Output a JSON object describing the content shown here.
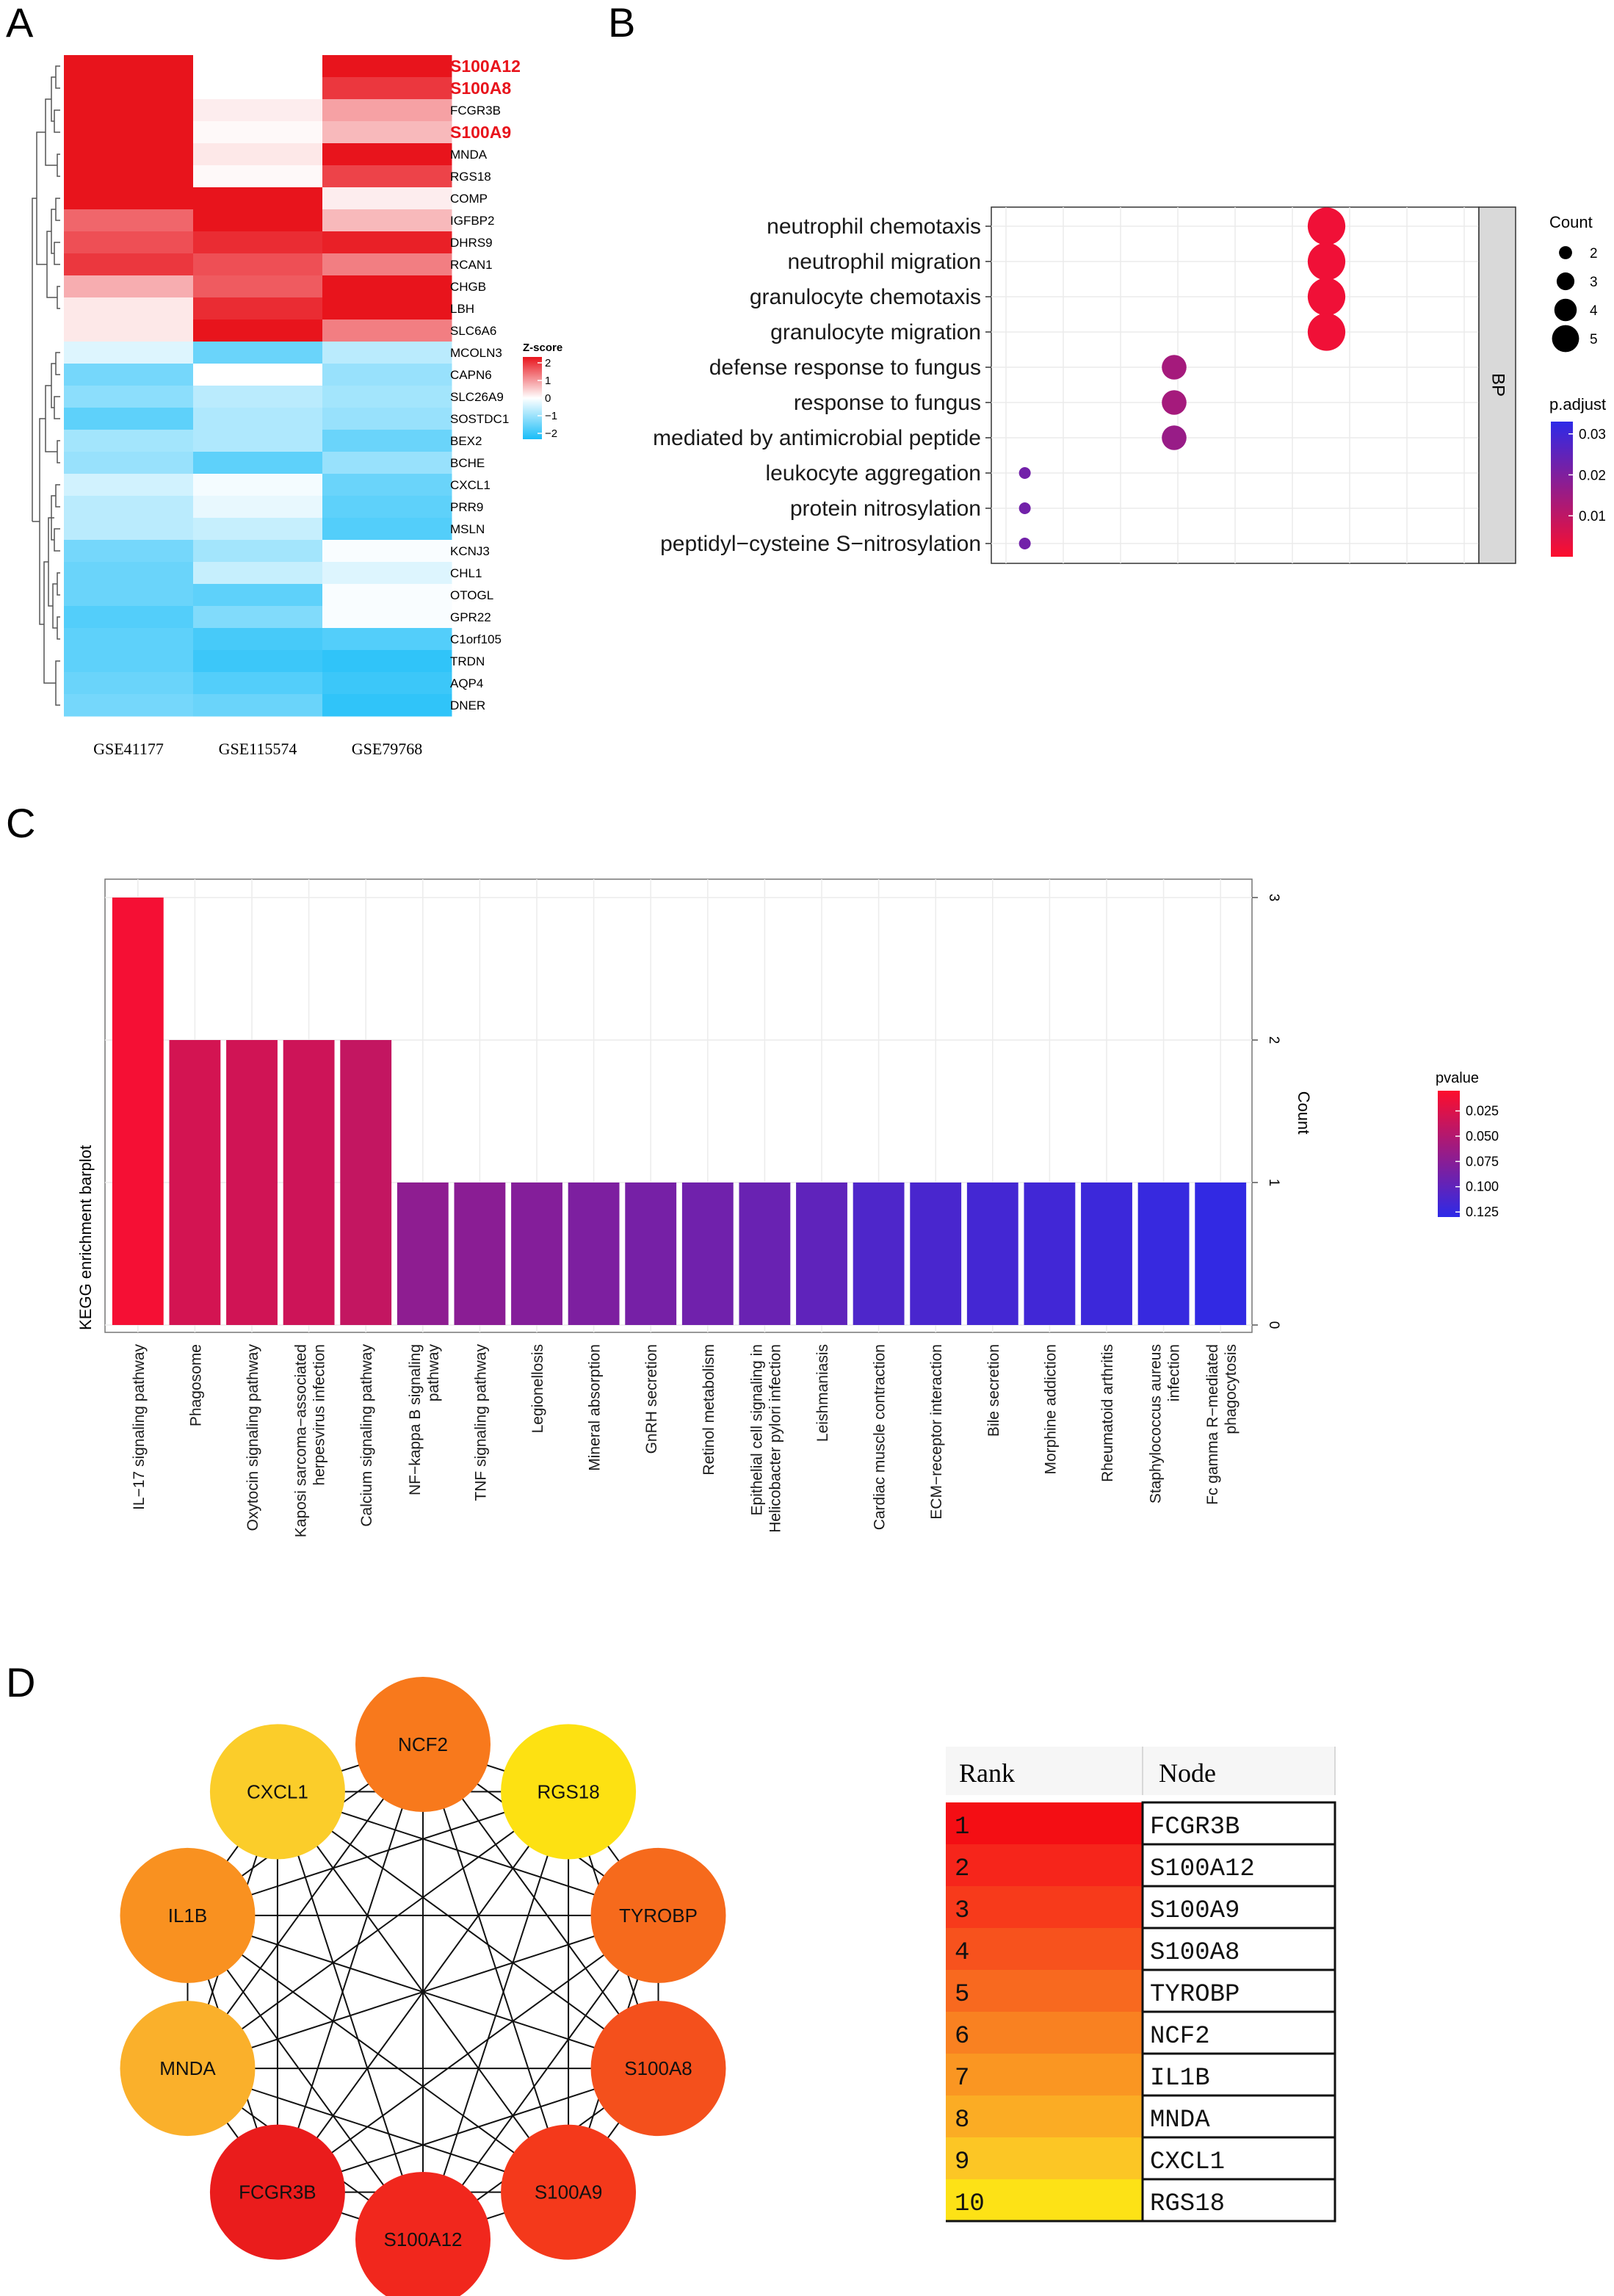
{
  "panels": [
    "A",
    "B",
    "C",
    "D"
  ],
  "chart_data": [
    {
      "panel": "A",
      "type": "heatmap",
      "columns": [
        "GSE41177",
        "GSE115574",
        "GSE79768"
      ],
      "genes": [
        "S100A12",
        "S100A8",
        "FCGR3B",
        "S100A9",
        "MNDA",
        "RGS18",
        "COMP",
        "IGFBP2",
        "DHRS9",
        "RCAN1",
        "CHGB",
        "LBH",
        "SLC6A6",
        "MCOLN3",
        "CAPN6",
        "SLC26A9",
        "SOSTDC1",
        "BEX2",
        "BCHE",
        "CXCL1",
        "PRR9",
        "MSLN",
        "KCNJ3",
        "CHL1",
        "OTOGL",
        "GPR22",
        "C1orf105",
        "TRDN",
        "AQP4",
        "DNER"
      ],
      "highlight_genes": [
        "S100A12",
        "S100A8",
        "S100A9"
      ],
      "values": [
        [
          2.0,
          0.0,
          2.0
        ],
        [
          2.0,
          0.0,
          1.7
        ],
        [
          2.0,
          0.15,
          0.8
        ],
        [
          2.0,
          0.05,
          0.6
        ],
        [
          2.0,
          0.2,
          2.0
        ],
        [
          2.0,
          0.05,
          1.6
        ],
        [
          2.0,
          2.0,
          0.15
        ],
        [
          1.3,
          2.0,
          0.6
        ],
        [
          1.5,
          1.8,
          1.9
        ],
        [
          1.7,
          1.5,
          1.1
        ],
        [
          0.7,
          1.4,
          2.0
        ],
        [
          0.2,
          1.8,
          2.0
        ],
        [
          0.2,
          2.0,
          1.1
        ],
        [
          -0.3,
          -1.3,
          -0.6
        ],
        [
          -1.2,
          0.0,
          -0.9
        ],
        [
          -1.0,
          -0.6,
          -0.8
        ],
        [
          -1.4,
          -0.7,
          -0.9
        ],
        [
          -0.8,
          -0.7,
          -1.3
        ],
        [
          -0.9,
          -1.4,
          -0.9
        ],
        [
          -0.4,
          -0.1,
          -1.3
        ],
        [
          -0.6,
          -0.2,
          -1.4
        ],
        [
          -0.6,
          -0.5,
          -1.5
        ],
        [
          -1.2,
          -0.8,
          -0.05
        ],
        [
          -1.3,
          -0.5,
          -0.3
        ],
        [
          -1.3,
          -1.4,
          -0.05
        ],
        [
          -1.5,
          -1.1,
          -0.05
        ],
        [
          -1.4,
          -1.6,
          -1.5
        ],
        [
          -1.4,
          -1.7,
          -1.8
        ],
        [
          -1.3,
          -1.5,
          -1.7
        ],
        [
          -1.2,
          -1.3,
          -1.8
        ]
      ],
      "legend_title": "Z-score",
      "legend_ticks": [
        "2",
        "1",
        "0",
        "−1",
        "−2"
      ]
    },
    {
      "panel": "B",
      "type": "scatter",
      "facet_label": "BP",
      "terms": [
        "neutrophil chemotaxis",
        "neutrophil migration",
        "granulocyte chemotaxis",
        "granulocyte migration",
        "defense response to fungus",
        "response to fungus",
        "mediated by antimicrobial peptide",
        "leukocyte aggregation",
        "protein nitrosylation",
        "peptidyl−cysteine S−nitrosylation"
      ],
      "gene_ratio": [
        0.55,
        0.55,
        0.55,
        0.55,
        0.3,
        0.3,
        0.3,
        0.055,
        0.055,
        0.055
      ],
      "count": [
        5,
        5,
        5,
        5,
        3,
        3,
        3,
        1,
        1,
        1
      ],
      "p_adjust": [
        0.002,
        0.002,
        0.002,
        0.002,
        0.014,
        0.014,
        0.016,
        0.022,
        0.022,
        0.022
      ],
      "xlim": [
        0.0,
        0.8
      ],
      "size_legend_title": "Count",
      "size_legend_values": [
        "2",
        "3",
        "4",
        "5"
      ],
      "color_legend_title": "p.adjust",
      "color_legend_ticks": [
        "0.03",
        "0.02",
        "0.01"
      ],
      "color_scale": [
        "#fd0e2c",
        "#2d2ae8"
      ]
    },
    {
      "panel": "C",
      "type": "bar",
      "ylabel_left": "KEGG enrichment barplot",
      "ylabel_right": "Count",
      "ylim": [
        0,
        3
      ],
      "yticks": [
        "0",
        "1",
        "2",
        "3"
      ],
      "categories": [
        "IL−17 signaling pathway",
        "Phagosome",
        "Oxytocin signaling pathway",
        "Kaposi sarcoma−associated\nherpesvirus infection",
        "Calcium signaling pathway",
        "NF−kappa B signaling\npathway",
        "TNF signaling pathway",
        "Legionellosis",
        "Mineral absorption",
        "GnRH secretion",
        "Retinol metabolism",
        "Epithelial cell signaling in\nHelicobacter pylori infection",
        "Leishmaniasis",
        "Cardiac muscle contraction",
        "ECM−receptor interaction",
        "Bile secretion",
        "Morphine addiction",
        "Rheumatoid arthritis",
        "Staphylococcus aureus\ninfection",
        "Fc gamma R−mediated\nphagocytosis"
      ],
      "values": [
        3,
        2,
        2,
        2,
        2,
        1,
        1,
        1,
        1,
        1,
        1,
        1,
        1,
        1,
        1,
        1,
        1,
        1,
        1,
        1
      ],
      "pvalue": [
        0.01,
        0.03,
        0.032,
        0.034,
        0.04,
        0.072,
        0.074,
        0.078,
        0.082,
        0.086,
        0.09,
        0.094,
        0.1,
        0.11,
        0.113,
        0.116,
        0.118,
        0.121,
        0.124,
        0.127
      ],
      "legend_title": "pvalue",
      "legend_ticks": [
        "0.025",
        "0.050",
        "0.075",
        "0.100",
        "0.125"
      ],
      "color_scale": [
        "#fd0e2c",
        "#2d2ae8"
      ]
    },
    {
      "panel": "D",
      "type": "table",
      "nodes": [
        {
          "label": "NCF2",
          "color": "#f8791c"
        },
        {
          "label": "RGS18",
          "color": "#fde112"
        },
        {
          "label": "TYROBP",
          "color": "#f66a1c"
        },
        {
          "label": "S100A8",
          "color": "#f4501c"
        },
        {
          "label": "S100A9",
          "color": "#f4391b"
        },
        {
          "label": "S100A12",
          "color": "#f1271d"
        },
        {
          "label": "FCGR3B",
          "color": "#ea1c1c"
        },
        {
          "label": "MNDA",
          "color": "#fab02b"
        },
        {
          "label": "IL1B",
          "color": "#f99120"
        },
        {
          "label": "CXCL1",
          "color": "#fbcd2a"
        }
      ],
      "table_headers": [
        "Rank",
        "Node"
      ],
      "table_rows": [
        {
          "rank": "1",
          "node": "FCGR3B",
          "color": "#f40e14"
        },
        {
          "rank": "2",
          "node": "S100A12",
          "color": "#f6251b"
        },
        {
          "rank": "3",
          "node": "S100A9",
          "color": "#f73a1b"
        },
        {
          "rank": "4",
          "node": "S100A8",
          "color": "#f7521d"
        },
        {
          "rank": "5",
          "node": "TYROBP",
          "color": "#f8691f"
        },
        {
          "rank": "6",
          "node": "NCF2",
          "color": "#f98121"
        },
        {
          "rank": "7",
          "node": "IL1B",
          "color": "#fa9622"
        },
        {
          "rank": "8",
          "node": "MNDA",
          "color": "#fbac24"
        },
        {
          "rank": "9",
          "node": "CXCL1",
          "color": "#fcc625"
        },
        {
          "rank": "10",
          "node": "RGS18",
          "color": "#fde216"
        }
      ]
    }
  ]
}
